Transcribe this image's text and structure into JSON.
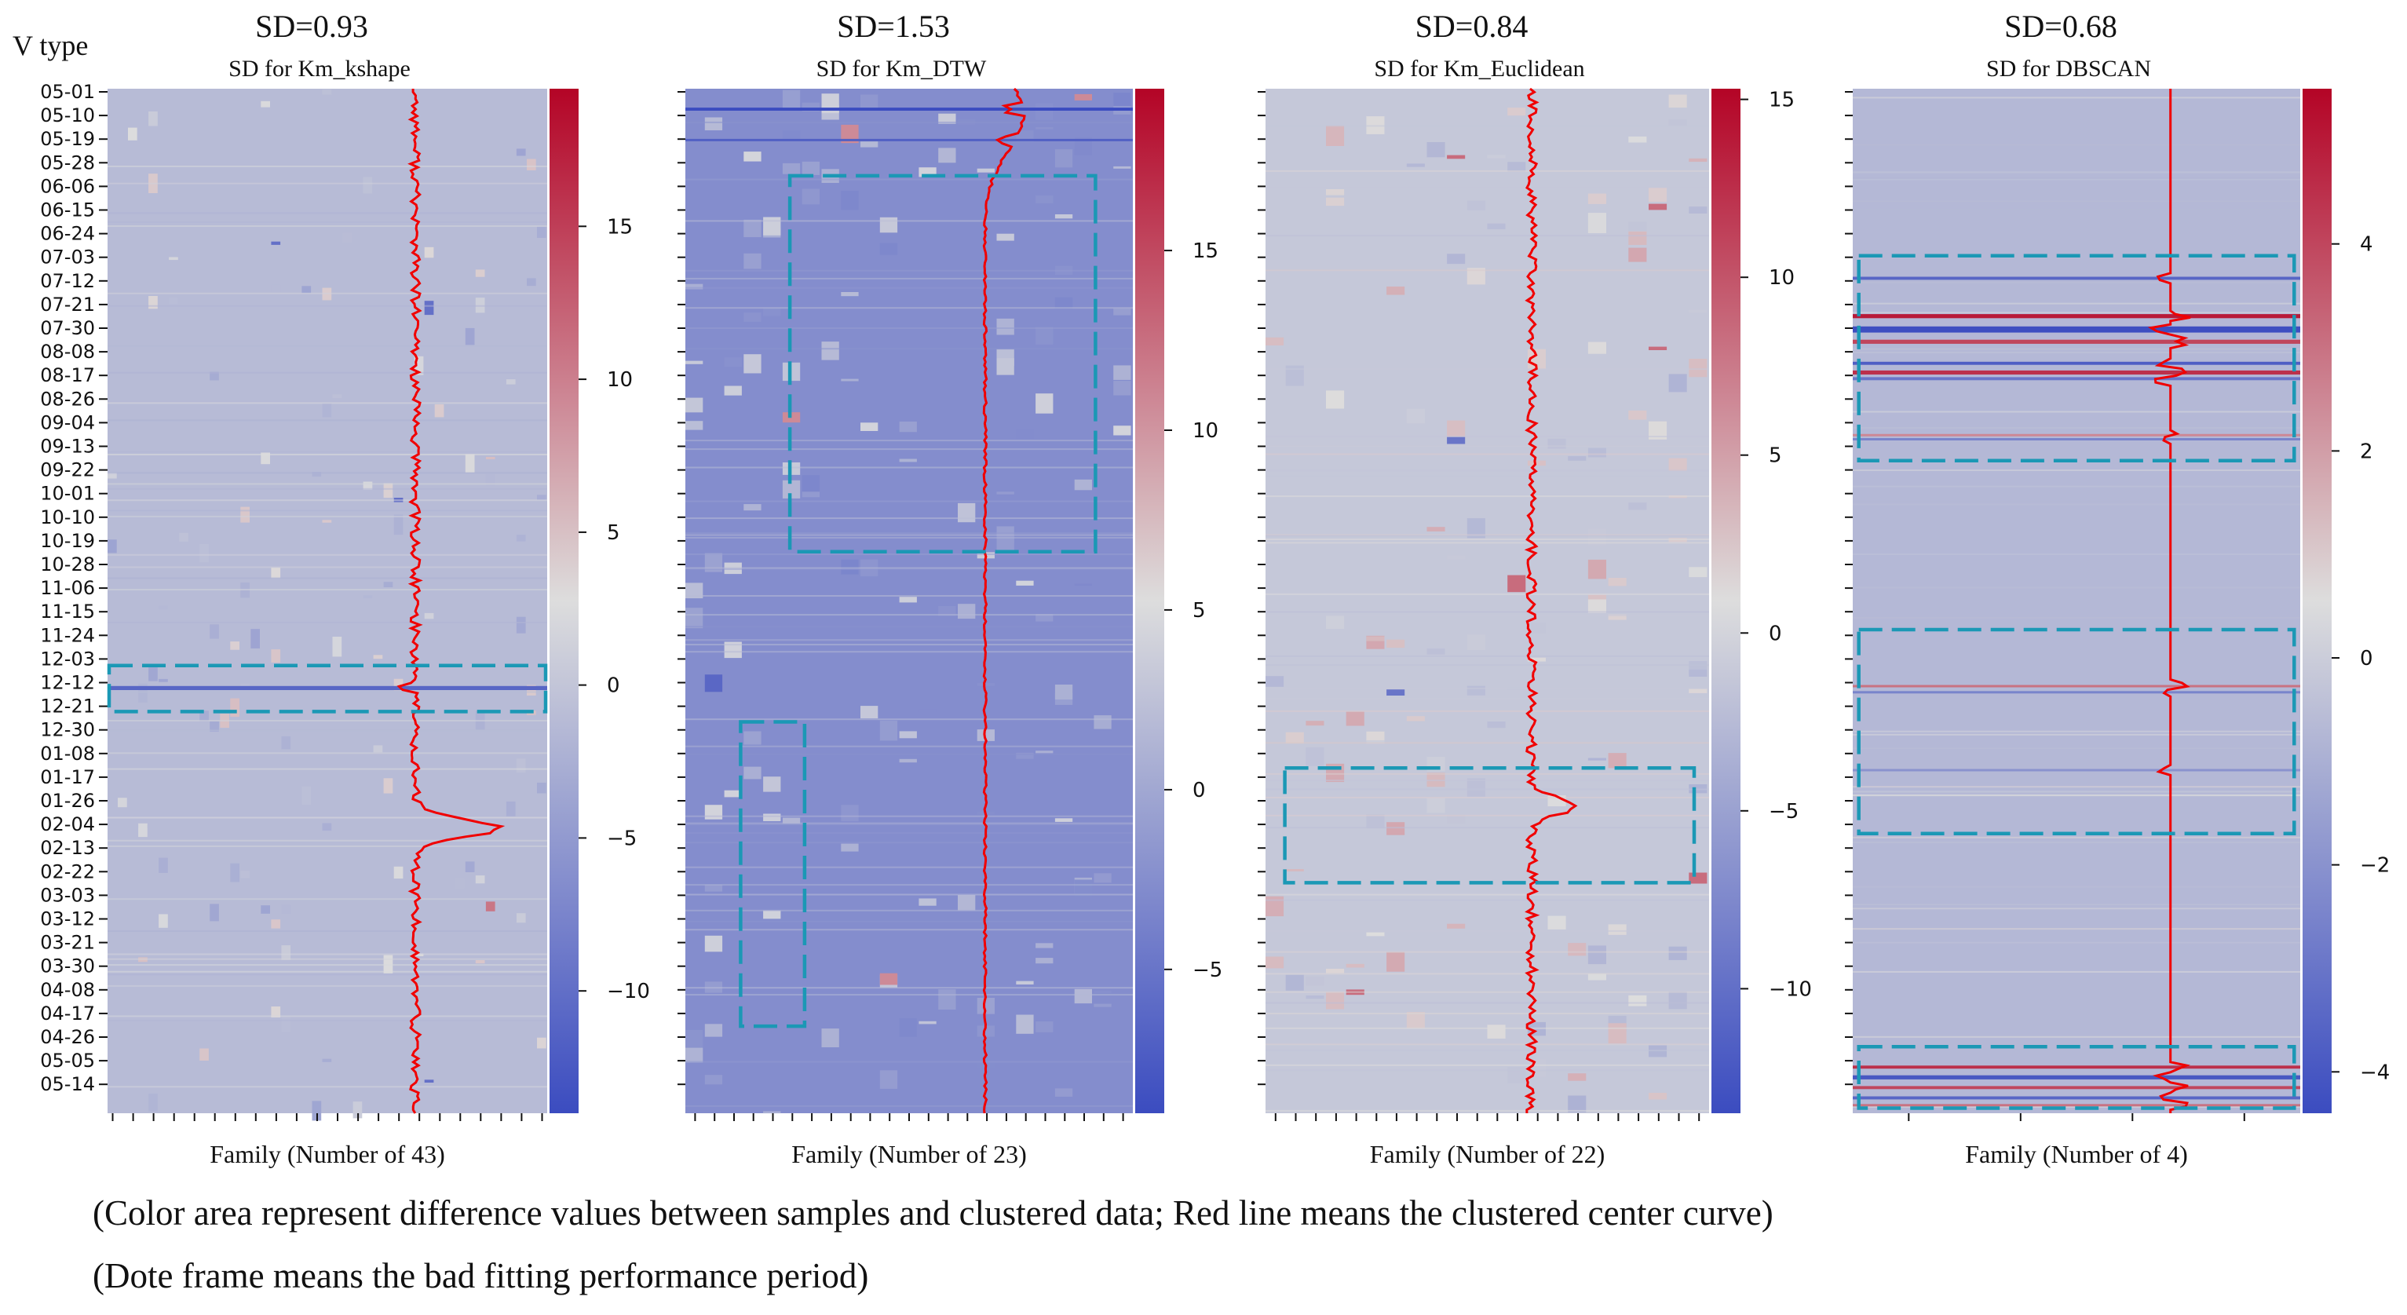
{
  "figure": {
    "y_axis_label": "V type",
    "captions": [
      "(Color area represent difference values between samples and clustered data; Red line means the clustered center curve)",
      "(Dote frame means the bad fitting performance period)"
    ],
    "y_ticks": [
      "05-01",
      "05-10",
      "05-19",
      "05-28",
      "06-06",
      "06-15",
      "06-24",
      "07-03",
      "07-12",
      "07-21",
      "07-30",
      "08-08",
      "08-17",
      "08-26",
      "09-04",
      "09-13",
      "09-22",
      "10-01",
      "10-10",
      "10-19",
      "10-28",
      "11-06",
      "11-15",
      "11-24",
      "12-03",
      "12-12",
      "12-21",
      "12-30",
      "01-08",
      "01-17",
      "01-26",
      "02-04",
      "02-13",
      "02-22",
      "03-03",
      "03-12",
      "03-21",
      "03-30",
      "04-08",
      "04-17",
      "04-26",
      "05-05",
      "05-14"
    ],
    "colors": {
      "frame": "#1b98b5",
      "center_curve": "#f00000",
      "cmap_low": "#3b4cc0",
      "cmap_mid": "#dddddd",
      "cmap_high": "#b40426"
    }
  },
  "chart_data": [
    {
      "type": "heatmap",
      "sd_label": "SD=0.93",
      "title": "SD for Km_kshape",
      "xlabel": "Family (Number of 43)",
      "families": 43,
      "vmin": -14,
      "vmax": 19.5,
      "colorbar_ticks": [
        15,
        10,
        5,
        0,
        -5,
        -10
      ],
      "colorbar_labels": [
        "15",
        "10",
        "5",
        "0",
        "−5",
        "−10"
      ],
      "bad_fit_frames": [
        {
          "row_start": 0.563,
          "row_end": 0.608,
          "fam_start": 0.0,
          "fam_end": 1.0
        }
      ],
      "strong_bands": [
        {
          "row": 0.585,
          "width": 0.004,
          "value": -11
        }
      ]
    },
    {
      "type": "heatmap",
      "sd_label": "SD=1.53",
      "title": "SD for Km_DTW",
      "xlabel": "Family (Number of 23)",
      "families": 23,
      "vmin": -9,
      "vmax": 19.5,
      "colorbar_ticks": [
        15,
        10,
        5,
        0,
        -5
      ],
      "colorbar_labels": [
        "15",
        "10",
        "5",
        "0",
        "−5"
      ],
      "bad_fit_frames": [
        {
          "row_start": 0.085,
          "row_end": 0.452,
          "fam_start": 0.23,
          "fam_end": 0.92
        },
        {
          "row_start": 0.618,
          "row_end": 0.915,
          "fam_start": 0.12,
          "fam_end": 0.27
        }
      ],
      "strong_bands": [
        {
          "row": 0.02,
          "width": 0.003,
          "value": -9
        },
        {
          "row": 0.05,
          "width": 0.002,
          "value": -7
        }
      ]
    },
    {
      "type": "heatmap",
      "sd_label": "SD=0.84",
      "title": "SD for Km_Euclidean",
      "xlabel": "Family (Number of 22)",
      "families": 22,
      "vmin": -13.5,
      "vmax": 15.3,
      "colorbar_ticks": [
        15,
        10,
        5,
        0,
        -5,
        -10
      ],
      "colorbar_labels": [
        "15",
        "10",
        "5",
        "0",
        "−5",
        "−10"
      ],
      "bad_fit_frames": [
        {
          "row_start": 0.663,
          "row_end": 0.775,
          "fam_start": 0.04,
          "fam_end": 0.97
        }
      ],
      "strong_bands": []
    },
    {
      "type": "heatmap",
      "sd_label": "SD=0.68",
      "title": "SD for DBSCAN",
      "xlabel": "Family (Number of 4)",
      "families": 4,
      "vmin": -4.4,
      "vmax": 5.5,
      "colorbar_ticks": [
        4,
        2,
        0,
        -2,
        -4
      ],
      "colorbar_labels": [
        "4",
        "2",
        "0",
        "−2",
        "−4"
      ],
      "bad_fit_frames": [
        {
          "row_start": 0.163,
          "row_end": 0.363,
          "fam_start": 0.01,
          "fam_end": 0.99
        },
        {
          "row_start": 0.528,
          "row_end": 0.727,
          "fam_start": 0.01,
          "fam_end": 0.99
        },
        {
          "row_start": 0.935,
          "row_end": 0.995,
          "fam_start": 0.01,
          "fam_end": 0.99
        }
      ],
      "strong_bands": [
        {
          "row": 0.185,
          "width": 0.003,
          "value": -3.5
        },
        {
          "row": 0.222,
          "width": 0.004,
          "value": 5
        },
        {
          "row": 0.235,
          "width": 0.006,
          "value": -4.3
        },
        {
          "row": 0.247,
          "width": 0.004,
          "value": 4
        },
        {
          "row": 0.268,
          "width": 0.003,
          "value": -3.8
        },
        {
          "row": 0.277,
          "width": 0.004,
          "value": 4.5
        },
        {
          "row": 0.283,
          "width": 0.003,
          "value": -3
        },
        {
          "row": 0.342,
          "width": 0.002,
          "value": -2.5
        },
        {
          "row": 0.338,
          "width": 0.002,
          "value": 2.5
        },
        {
          "row": 0.583,
          "width": 0.002,
          "value": 3
        },
        {
          "row": 0.589,
          "width": 0.002,
          "value": -2.5
        },
        {
          "row": 0.665,
          "width": 0.002,
          "value": -2
        },
        {
          "row": 0.955,
          "width": 0.003,
          "value": 4.5
        },
        {
          "row": 0.965,
          "width": 0.004,
          "value": -4
        },
        {
          "row": 0.975,
          "width": 0.003,
          "value": 4
        },
        {
          "row": 0.985,
          "width": 0.003,
          "value": -3.5
        },
        {
          "row": 0.992,
          "width": 0.002,
          "value": 3
        }
      ]
    }
  ]
}
